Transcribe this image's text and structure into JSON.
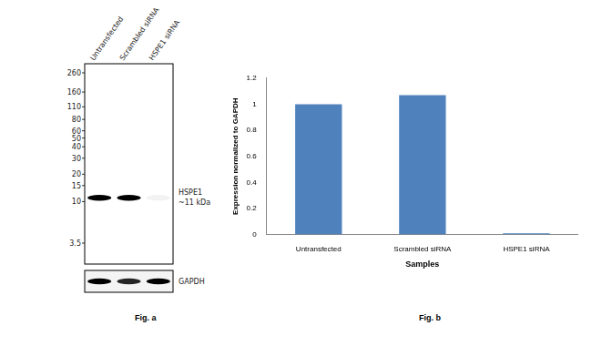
{
  "chart_data": {
    "type": "bar",
    "title": "Fig. b",
    "categories": [
      "Untransfected",
      "Scrambled siRNA",
      "HSPE1 siRNA"
    ],
    "values": [
      1,
      1.07,
      0.01
    ],
    "color": "#4f81bd",
    "x_label": "Samples",
    "y_label": "Expression normalized to GAPDH",
    "ylim": [
      0,
      1.2
    ],
    "yticks": [
      0,
      0.2,
      0.4,
      0.6,
      0.8,
      1,
      1.2
    ],
    "grid": false
  },
  "western_blot": {
    "title": "Fig. a",
    "lanes": [
      "Untransfected",
      "Scrambled siRNA",
      "HSPE1 siRNA"
    ],
    "markers_kda": [
      260,
      160,
      110,
      80,
      60,
      50,
      40,
      30,
      20,
      15,
      10,
      3.5
    ],
    "bands": [
      {
        "label": "HSPE1",
        "size_label": "~11 kDa",
        "kda": 11,
        "intensity": [
          1,
          1,
          0.05
        ]
      },
      {
        "label": "GAPDH",
        "intensity": [
          1,
          0.85,
          1
        ]
      }
    ]
  }
}
